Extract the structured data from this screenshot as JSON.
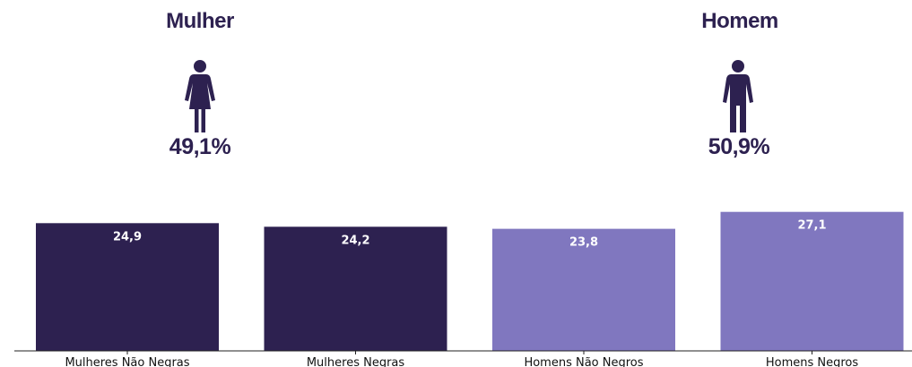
{
  "colors": {
    "dark": "#2d2150",
    "light": "#8077bf",
    "title": "#2d2150"
  },
  "gender": {
    "female": {
      "title": "Mulher",
      "percent": "49,1%",
      "icon": "female-person-icon"
    },
    "male": {
      "title": "Homem",
      "percent": "50,9%",
      "icon": "male-person-icon"
    }
  },
  "chart_data": {
    "type": "bar",
    "categories": [
      "Mulheres Não Negras",
      "Mulheres Negras",
      "Homens Não Negros",
      "Homens Negros"
    ],
    "values": [
      24.9,
      24.2,
      23.8,
      27.1
    ],
    "value_labels": [
      "24,9",
      "24,2",
      "23,8",
      "27,1"
    ],
    "bar_colors": [
      "#2d2150",
      "#2d2150",
      "#8077bf",
      "#8077bf"
    ],
    "title": "",
    "xlabel": "",
    "ylabel": "",
    "ylim": [
      0,
      30
    ],
    "grid": false,
    "legend": "none"
  }
}
